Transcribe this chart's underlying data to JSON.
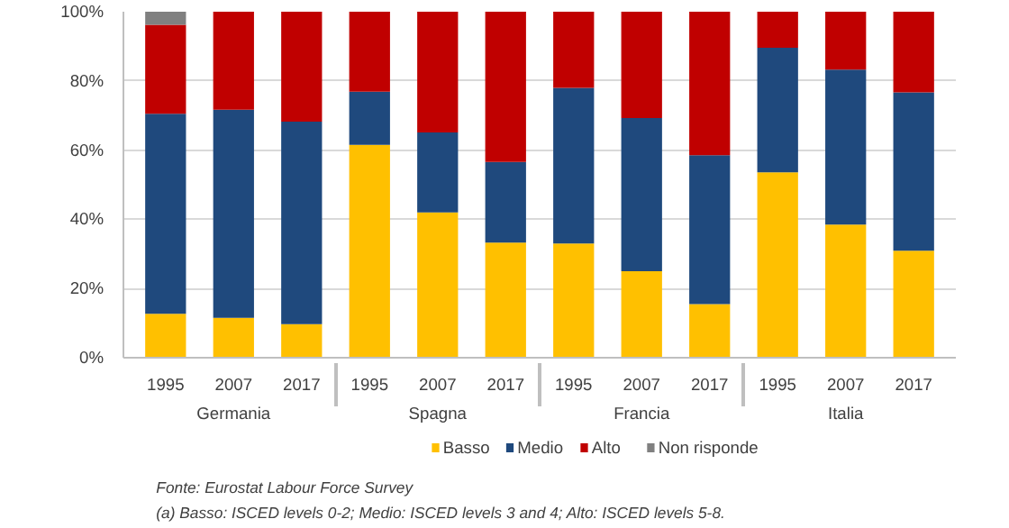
{
  "chart_data": {
    "type": "bar",
    "stacked": true,
    "categories": [
      "1995",
      "2007",
      "2017",
      "1995",
      "2007",
      "2017",
      "1995",
      "2007",
      "2017",
      "1995",
      "2007",
      "2017"
    ],
    "series": [
      {
        "name": "Basso",
        "color": "#ffc000",
        "values": [
          12.7,
          11.5,
          9.7,
          61.5,
          42.0,
          33.3,
          33.0,
          25.0,
          15.5,
          53.6,
          38.5,
          30.9
        ]
      },
      {
        "name": "Medio",
        "color": "#1f497d",
        "values": [
          57.8,
          60.2,
          58.5,
          15.4,
          23.1,
          23.3,
          45.0,
          44.3,
          43.0,
          36.0,
          44.8,
          45.8
        ]
      },
      {
        "name": "Alto",
        "color": "#c00000",
        "values": [
          25.7,
          28.3,
          31.8,
          23.1,
          34.9,
          43.4,
          22.0,
          30.7,
          41.5,
          10.4,
          16.7,
          23.3
        ]
      },
      {
        "name": "Non risponde",
        "color": "#808080",
        "values": [
          3.8,
          null,
          null,
          null,
          null,
          null,
          null,
          null,
          null,
          null,
          null,
          null
        ]
      }
    ],
    "ylim": [
      0,
      100
    ],
    "yticks": [
      {
        "value": 0,
        "label": "0%"
      },
      {
        "value": 20,
        "label": "20%"
      },
      {
        "value": 40,
        "label": "40%"
      },
      {
        "value": 60,
        "label": "60%"
      },
      {
        "value": 80,
        "label": "80%"
      },
      {
        "value": 100,
        "label": "100%"
      }
    ],
    "grid": "y",
    "legend": "bottom",
    "annotations": [
      "Germania",
      "Spagna",
      "Francia",
      "Italia",
      "Fonte: Eurostat Labour Force Survey",
      "(a) Basso: ISCED levels 0-2; Medio: ISCED levels 3 and 4; Alto: ISCED levels 5-8."
    ]
  }
}
